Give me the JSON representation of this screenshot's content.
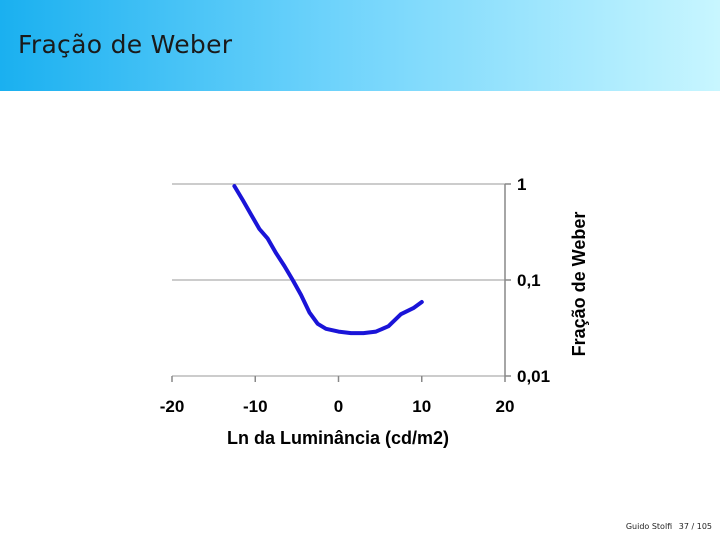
{
  "slide": {
    "title": "Fração de Weber"
  },
  "footer": {
    "author": "Guido Stolfi",
    "page": "37 / 105"
  },
  "chart_data": {
    "type": "line",
    "title": "",
    "xlabel": "Ln da Luminância (cd/m2)",
    "ylabel": "Fração de Weber",
    "xlim": [
      -20,
      20
    ],
    "ylim": [
      0.01,
      1
    ],
    "yscale": "log",
    "yaxis_position": "right",
    "grid": "horizontal",
    "legend": "none",
    "x_ticks": [
      {
        "value": -20,
        "label": "-20"
      },
      {
        "value": -10,
        "label": "-10"
      },
      {
        "value": 0,
        "label": "0"
      },
      {
        "value": 10,
        "label": "10"
      },
      {
        "value": 20,
        "label": "20"
      }
    ],
    "y_ticks": [
      {
        "value": 1,
        "label": "1"
      },
      {
        "value": 0.1,
        "label": "0,1"
      },
      {
        "value": 0.01,
        "label": "0,01"
      }
    ],
    "series": [
      {
        "color": "#1a14d8",
        "x": [
          -12.5,
          -11.5,
          -10.5,
          -9.5,
          -8.5,
          -7.5,
          -6.5,
          -5.5,
          -4.5,
          -3.5,
          -2.5,
          -1.5,
          0,
          1.5,
          3,
          4.5,
          6,
          7.5,
          9,
          10
        ],
        "y": [
          0.95,
          0.68,
          0.48,
          0.34,
          0.27,
          0.19,
          0.14,
          0.1,
          0.07,
          0.046,
          0.035,
          0.031,
          0.029,
          0.028,
          0.028,
          0.029,
          0.033,
          0.044,
          0.051,
          0.059
        ]
      }
    ]
  }
}
